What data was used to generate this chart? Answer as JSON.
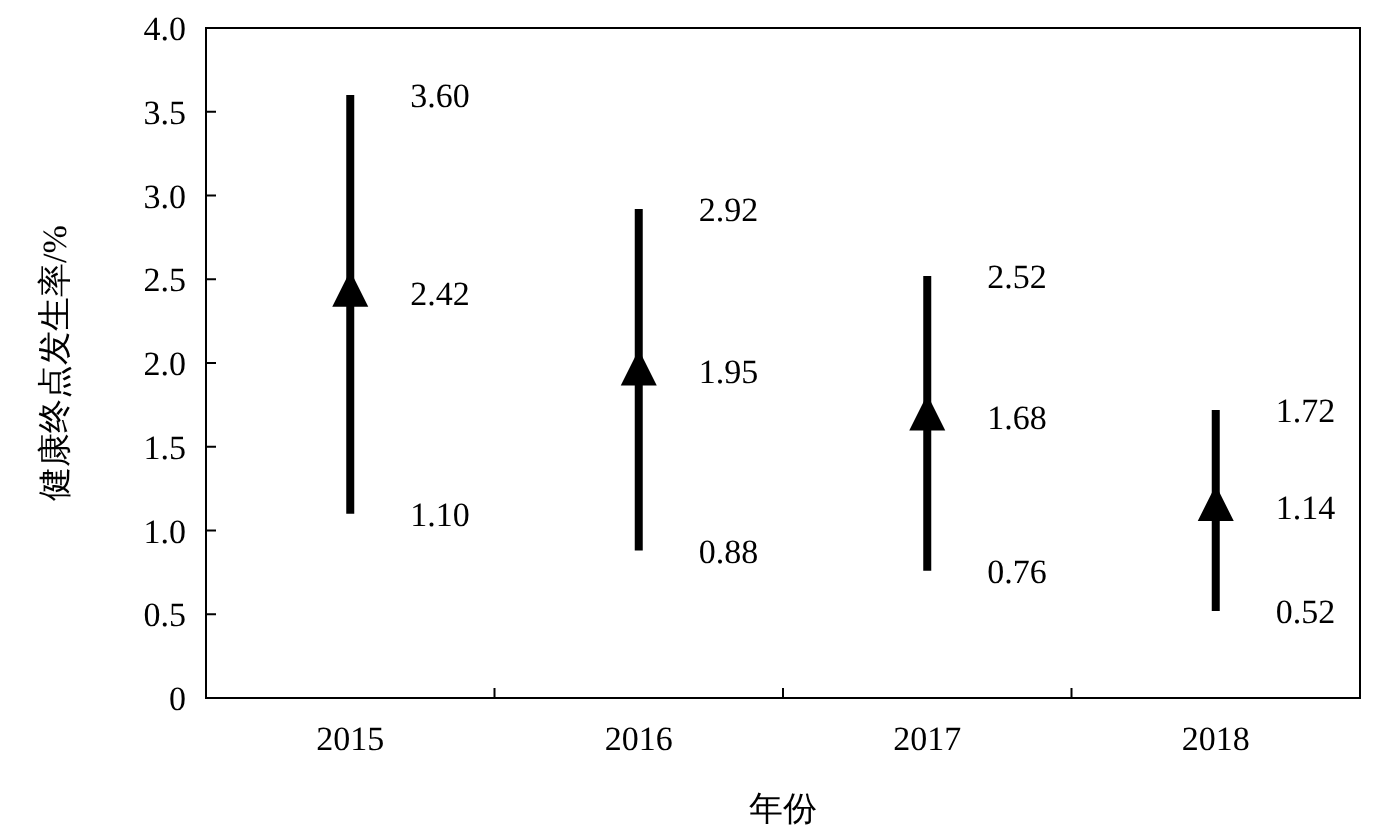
{
  "chart_data": {
    "type": "scatter",
    "xlabel": "年份",
    "ylabel": "健康终点发生率/%",
    "categories": [
      "2015",
      "2016",
      "2017",
      "2018"
    ],
    "series": [
      {
        "color": "#000000",
        "values": [
          2.42,
          1.95,
          1.68,
          1.14
        ],
        "errors": [
          [
            1.1,
            3.6
          ],
          [
            0.88,
            2.92
          ],
          [
            0.76,
            2.52
          ],
          [
            0.52,
            1.72
          ]
        ],
        "value_labels": [
          "2.42",
          "1.95",
          "1.68",
          "1.14"
        ]
      }
    ],
    "marker": "triangle",
    "grid": false,
    "ylim": [
      0,
      4
    ],
    "yticks": [
      0,
      {
        "value": 0.5,
        "label": "0.5"
      },
      {
        "value": 1,
        "label": "1.0"
      },
      {
        "value": 1.5,
        "label": "1.5"
      },
      {
        "value": 2,
        "label": "2.0"
      },
      {
        "value": 2.5,
        "label": "2.5"
      },
      {
        "value": 3,
        "label": "3.0"
      },
      {
        "value": 3.5,
        "label": "3.5"
      },
      {
        "value": 4,
        "label": "4.0"
      }
    ],
    "annotations": [
      {
        "text": "3.60",
        "x": "2015",
        "y": 3.6
      },
      {
        "text": "1.10",
        "x": "2015",
        "y": 1.1
      },
      {
        "text": "2.92",
        "x": "2016",
        "y": 2.92
      },
      {
        "text": "0.88",
        "x": "2016",
        "y": 0.88
      },
      {
        "text": "2.52",
        "x": "2017",
        "y": 2.52
      },
      {
        "text": "0.76",
        "x": "2017",
        "y": 0.76
      },
      {
        "text": "1.72",
        "x": "2018",
        "y": 1.72
      },
      {
        "text": "0.52",
        "x": "2018",
        "y": 0.52
      }
    ]
  }
}
